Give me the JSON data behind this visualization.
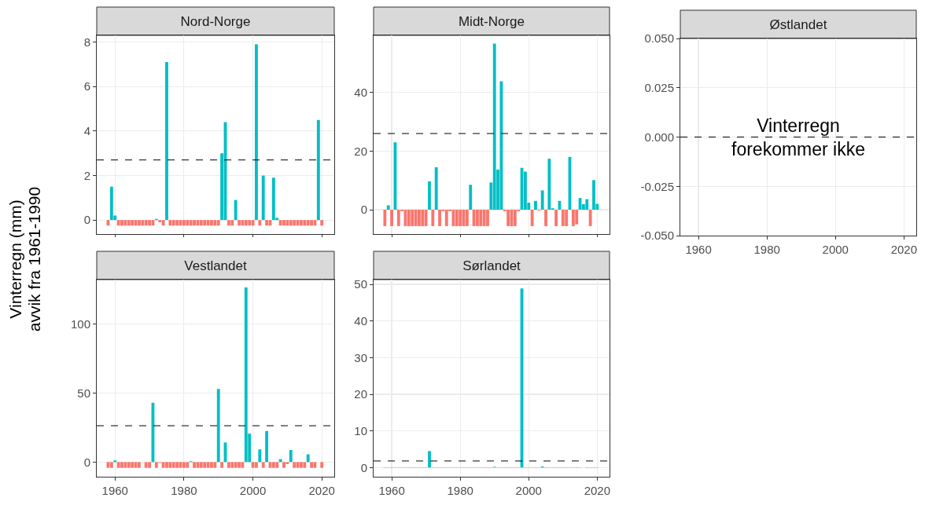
{
  "chart_data": [
    {
      "type": "bar",
      "title": "Nord-Norge",
      "ylabel": "Vinterregn (mm)\navvik fra 1961-1990",
      "stacked": true,
      "grid": true,
      "tick_labels": "y",
      "x": [
        1958,
        1959,
        1960,
        1961,
        1962,
        1963,
        1964,
        1965,
        1966,
        1967,
        1968,
        1969,
        1970,
        1971,
        1972,
        1973,
        1974,
        1975,
        1976,
        1977,
        1978,
        1979,
        1980,
        1981,
        1982,
        1983,
        1984,
        1985,
        1986,
        1987,
        1988,
        1989,
        1990,
        1991,
        1992,
        1993,
        1994,
        1995,
        1996,
        1997,
        1998,
        1999,
        2000,
        2001,
        2002,
        2003,
        2004,
        2005,
        2006,
        2007,
        2008,
        2009,
        2010,
        2011,
        2012,
        2013,
        2014,
        2015,
        2016,
        2017,
        2018,
        2019,
        2020
      ],
      "xlim": [
        1954.7,
        2023.6
      ],
      "xticks": [
        1960,
        1980,
        2000,
        2020
      ],
      "ylim": [
        -0.63,
        8.3
      ],
      "yticks": [
        0,
        2,
        4,
        6,
        8
      ],
      "ref_lines": [
        {
          "axis": "y",
          "value": 2.7,
          "line_style": "dashed",
          "color": "#000000"
        }
      ],
      "series": [
        {
          "color": "#00bfc4",
          "values": [
            null,
            1.5,
            0.2,
            null,
            null,
            null,
            null,
            null,
            null,
            null,
            null,
            null,
            null,
            null,
            0.05,
            null,
            null,
            7.1,
            null,
            null,
            null,
            null,
            null,
            null,
            null,
            null,
            null,
            null,
            null,
            null,
            null,
            null,
            null,
            3.0,
            4.4,
            null,
            null,
            0.9,
            null,
            null,
            null,
            null,
            null,
            7.9,
            null,
            2.0,
            null,
            null,
            1.9,
            0.1,
            null,
            null,
            null,
            null,
            null,
            null,
            null,
            null,
            null,
            null,
            null,
            4.5,
            null
          ]
        },
        {
          "color": "#f8766d",
          "values": [
            -0.25,
            null,
            null,
            -0.25,
            -0.25,
            -0.25,
            -0.25,
            -0.25,
            -0.25,
            -0.25,
            -0.25,
            -0.25,
            -0.25,
            -0.25,
            null,
            -0.1,
            -0.25,
            null,
            -0.25,
            -0.25,
            -0.25,
            -0.25,
            -0.25,
            -0.25,
            -0.25,
            -0.25,
            -0.25,
            -0.25,
            -0.25,
            -0.25,
            -0.25,
            -0.25,
            -0.25,
            null,
            null,
            -0.25,
            -0.25,
            null,
            -0.25,
            -0.25,
            -0.25,
            -0.25,
            -0.25,
            null,
            -0.25,
            null,
            -0.25,
            -0.25,
            null,
            null,
            -0.25,
            -0.25,
            -0.25,
            -0.25,
            -0.25,
            -0.25,
            -0.25,
            -0.25,
            -0.25,
            -0.25,
            -0.25,
            null,
            -0.25
          ]
        }
      ]
    },
    {
      "type": "bar",
      "title": "Midt-Norge",
      "stacked": true,
      "grid": true,
      "tick_labels": "y",
      "x": [
        1958,
        1959,
        1960,
        1961,
        1962,
        1963,
        1964,
        1965,
        1966,
        1967,
        1968,
        1969,
        1970,
        1971,
        1972,
        1973,
        1974,
        1975,
        1976,
        1977,
        1978,
        1979,
        1980,
        1981,
        1982,
        1983,
        1984,
        1985,
        1986,
        1987,
        1988,
        1989,
        1990,
        1991,
        1992,
        1993,
        1994,
        1995,
        1996,
        1997,
        1998,
        1999,
        2000,
        2001,
        2002,
        2003,
        2004,
        2005,
        2006,
        2007,
        2008,
        2009,
        2010,
        2011,
        2012,
        2013,
        2014,
        2015,
        2016,
        2017,
        2018,
        2019,
        2020
      ],
      "xlim": [
        1954.7,
        2023.6
      ],
      "xticks": [
        1960,
        1980,
        2000,
        2020
      ],
      "ylim": [
        -8.3,
        59.5
      ],
      "yticks": [
        0,
        20,
        40
      ],
      "ref_lines": [
        {
          "axis": "y",
          "value": 26,
          "line_style": "dashed",
          "color": "#000000"
        }
      ],
      "series": [
        {
          "color": "#00bfc4",
          "values": [
            null,
            1.5,
            null,
            23,
            null,
            null,
            null,
            null,
            null,
            null,
            null,
            null,
            null,
            9.7,
            null,
            14.5,
            null,
            null,
            null,
            null,
            null,
            null,
            null,
            null,
            null,
            8.5,
            null,
            null,
            null,
            null,
            null,
            9.3,
            56.7,
            13.7,
            43.8,
            null,
            null,
            null,
            null,
            null,
            14.3,
            13.0,
            2.4,
            null,
            3.0,
            null,
            6.6,
            null,
            17.4,
            0.5,
            null,
            3.0,
            null,
            null,
            18,
            null,
            null,
            4.0,
            1.9,
            3.6,
            null,
            10.1,
            2.0
          ]
        },
        {
          "color": "#f8766d",
          "values": [
            -5.6,
            null,
            -5.6,
            null,
            -5.6,
            -0.5,
            -5.6,
            -5.6,
            -5.6,
            -5.6,
            -5.6,
            -5.6,
            -5.6,
            null,
            -5.6,
            null,
            -5.6,
            -0.5,
            -5.6,
            -0.5,
            -5.6,
            -5.6,
            -5.6,
            -5.6,
            -5.6,
            null,
            -5.6,
            -5.6,
            -5.6,
            -5.6,
            -5.6,
            null,
            null,
            null,
            null,
            -0.5,
            -5.6,
            -5.6,
            -5.6,
            -0.5,
            null,
            null,
            null,
            -5.6,
            null,
            -0.3,
            null,
            -5.6,
            null,
            null,
            -5.6,
            null,
            -5.6,
            -5.6,
            null,
            -5.6,
            -5.0,
            null,
            null,
            null,
            -5.6,
            null,
            null
          ]
        }
      ]
    },
    {
      "type": "bar",
      "title": "Østlandet",
      "grid": true,
      "xlim": [
        1954.7,
        2023.6
      ],
      "xticks": [
        1960,
        1980,
        2000,
        2020
      ],
      "ylim": [
        -0.05,
        0.05
      ],
      "yticks": [
        {
          "value": -0.05,
          "label": "-0.050"
        },
        {
          "value": -0.025,
          "label": "-0.025"
        },
        {
          "value": 0,
          "label": "0.000"
        },
        {
          "value": 0.025,
          "label": "0.025"
        },
        {
          "value": 0.05,
          "label": "0.050"
        }
      ],
      "ref_lines": [
        {
          "axis": "y",
          "value": 0,
          "line_style": "dashed",
          "color": "#000000"
        }
      ],
      "annotations": [
        "Vinterregn\nforekommer ikke"
      ]
    },
    {
      "type": "bar",
      "title": "Vestlandet",
      "stacked": true,
      "grid": true,
      "x": [
        1958,
        1959,
        1960,
        1961,
        1962,
        1963,
        1964,
        1965,
        1966,
        1967,
        1968,
        1969,
        1970,
        1971,
        1972,
        1973,
        1974,
        1975,
        1976,
        1977,
        1978,
        1979,
        1980,
        1981,
        1982,
        1983,
        1984,
        1985,
        1986,
        1987,
        1988,
        1989,
        1990,
        1991,
        1992,
        1993,
        1994,
        1995,
        1996,
        1997,
        1998,
        1999,
        2000,
        2001,
        2002,
        2003,
        2004,
        2005,
        2006,
        2007,
        2008,
        2009,
        2010,
        2011,
        2012,
        2013,
        2014,
        2015,
        2016,
        2017,
        2018,
        2019,
        2020
      ],
      "xlim": [
        1954.7,
        2023.6
      ],
      "xticks": [
        1960,
        1980,
        2000,
        2020
      ],
      "ylim": [
        -10.6,
        132
      ],
      "yticks": [
        0,
        50,
        100
      ],
      "ref_lines": [
        {
          "axis": "y",
          "value": 26.3,
          "line_style": "dashed",
          "color": "#000000"
        }
      ],
      "series": [
        {
          "color": "#00bfc4",
          "values": [
            null,
            null,
            1.2,
            null,
            null,
            null,
            null,
            null,
            null,
            null,
            null,
            null,
            null,
            42.9,
            null,
            null,
            null,
            null,
            null,
            null,
            null,
            null,
            null,
            null,
            0.6,
            null,
            null,
            null,
            null,
            null,
            null,
            null,
            52.9,
            null,
            14.2,
            null,
            null,
            null,
            null,
            null,
            126.3,
            20.6,
            null,
            null,
            9.2,
            null,
            22.5,
            null,
            null,
            null,
            2.1,
            null,
            null,
            8.7,
            null,
            null,
            null,
            null,
            5.6,
            null,
            null,
            null,
            null
          ]
        },
        {
          "color": "#f8766d",
          "values": [
            -4.2,
            -4.2,
            null,
            -4.2,
            -4.2,
            -4.2,
            -4.2,
            -4.2,
            -4.2,
            -4.2,
            null,
            -4.2,
            -4.2,
            null,
            -4.2,
            -0.5,
            -4.2,
            -4.2,
            -4.2,
            -4.2,
            -4.2,
            -4.2,
            -4.2,
            -4.2,
            null,
            -4.2,
            -4.2,
            -4.2,
            -4.2,
            -4.2,
            -4.2,
            -4.2,
            null,
            -4.2,
            null,
            -4.2,
            -4.2,
            -4.2,
            -4.2,
            -4.2,
            null,
            null,
            -4.2,
            -4.2,
            null,
            -4.2,
            null,
            -4.2,
            -4.2,
            -4.2,
            null,
            -4.2,
            -1.5,
            null,
            -4.2,
            -4.2,
            -4.2,
            -4.2,
            null,
            -4.2,
            -4.2,
            null,
            -4.2
          ]
        }
      ]
    },
    {
      "type": "bar",
      "title": "Sørlandet",
      "stacked": true,
      "grid": true,
      "x": [
        1958,
        1959,
        1960,
        1961,
        1962,
        1963,
        1964,
        1965,
        1966,
        1967,
        1968,
        1969,
        1970,
        1971,
        1972,
        1973,
        1974,
        1975,
        1976,
        1977,
        1978,
        1979,
        1980,
        1981,
        1982,
        1983,
        1984,
        1985,
        1986,
        1987,
        1988,
        1989,
        1990,
        1991,
        1992,
        1993,
        1994,
        1995,
        1996,
        1997,
        1998,
        1999,
        2000,
        2001,
        2002,
        2003,
        2004,
        2005,
        2006,
        2007,
        2008,
        2009,
        2010,
        2011,
        2012,
        2013,
        2014,
        2015,
        2016,
        2017,
        2018,
        2019,
        2020
      ],
      "xlim": [
        1954.7,
        2023.6
      ],
      "xticks": [
        1960,
        1980,
        2000,
        2020
      ],
      "ylim": [
        -2.5,
        51.3
      ],
      "yticks": [
        0,
        10,
        20,
        30,
        40,
        50
      ],
      "ref_lines": [
        {
          "axis": "y",
          "value": 1.8,
          "line_style": "dashed",
          "color": "#000000"
        }
      ],
      "series": [
        {
          "color": "#00bfc4",
          "values": [
            null,
            null,
            null,
            null,
            null,
            null,
            null,
            null,
            null,
            null,
            null,
            null,
            null,
            4.5,
            null,
            null,
            null,
            null,
            null,
            null,
            null,
            null,
            null,
            null,
            null,
            null,
            null,
            null,
            null,
            null,
            null,
            null,
            0.2,
            null,
            null,
            null,
            null,
            null,
            null,
            null,
            48.9,
            null,
            null,
            null,
            null,
            null,
            0.3,
            null,
            null,
            null,
            null,
            null,
            null,
            null,
            null,
            null,
            null,
            null,
            null,
            null,
            null,
            null,
            null
          ]
        },
        {
          "color": "#f8766d",
          "values": [
            -0.1,
            -0.1,
            -0.1,
            -0.1,
            -0.1,
            -0.1,
            -0.1,
            -0.1,
            -0.1,
            -0.1,
            -0.1,
            -0.1,
            -0.1,
            null,
            -0.1,
            -0.1,
            -0.1,
            -0.1,
            -0.1,
            -0.1,
            -0.1,
            -0.1,
            -0.1,
            -0.1,
            -0.1,
            -0.1,
            -0.1,
            -0.1,
            -0.1,
            -0.1,
            -0.1,
            -0.1,
            null,
            -0.1,
            -0.1,
            -0.1,
            -0.1,
            -0.1,
            -0.1,
            -0.1,
            null,
            -0.1,
            -0.1,
            -0.1,
            -0.1,
            -0.1,
            null,
            -0.1,
            -0.1,
            -0.1,
            -0.1,
            -0.1,
            -0.1,
            -0.1,
            -0.1,
            -0.1,
            -0.1,
            -0.1,
            null,
            -0.1,
            -0.1,
            -0.1,
            -0.1
          ]
        }
      ]
    }
  ]
}
